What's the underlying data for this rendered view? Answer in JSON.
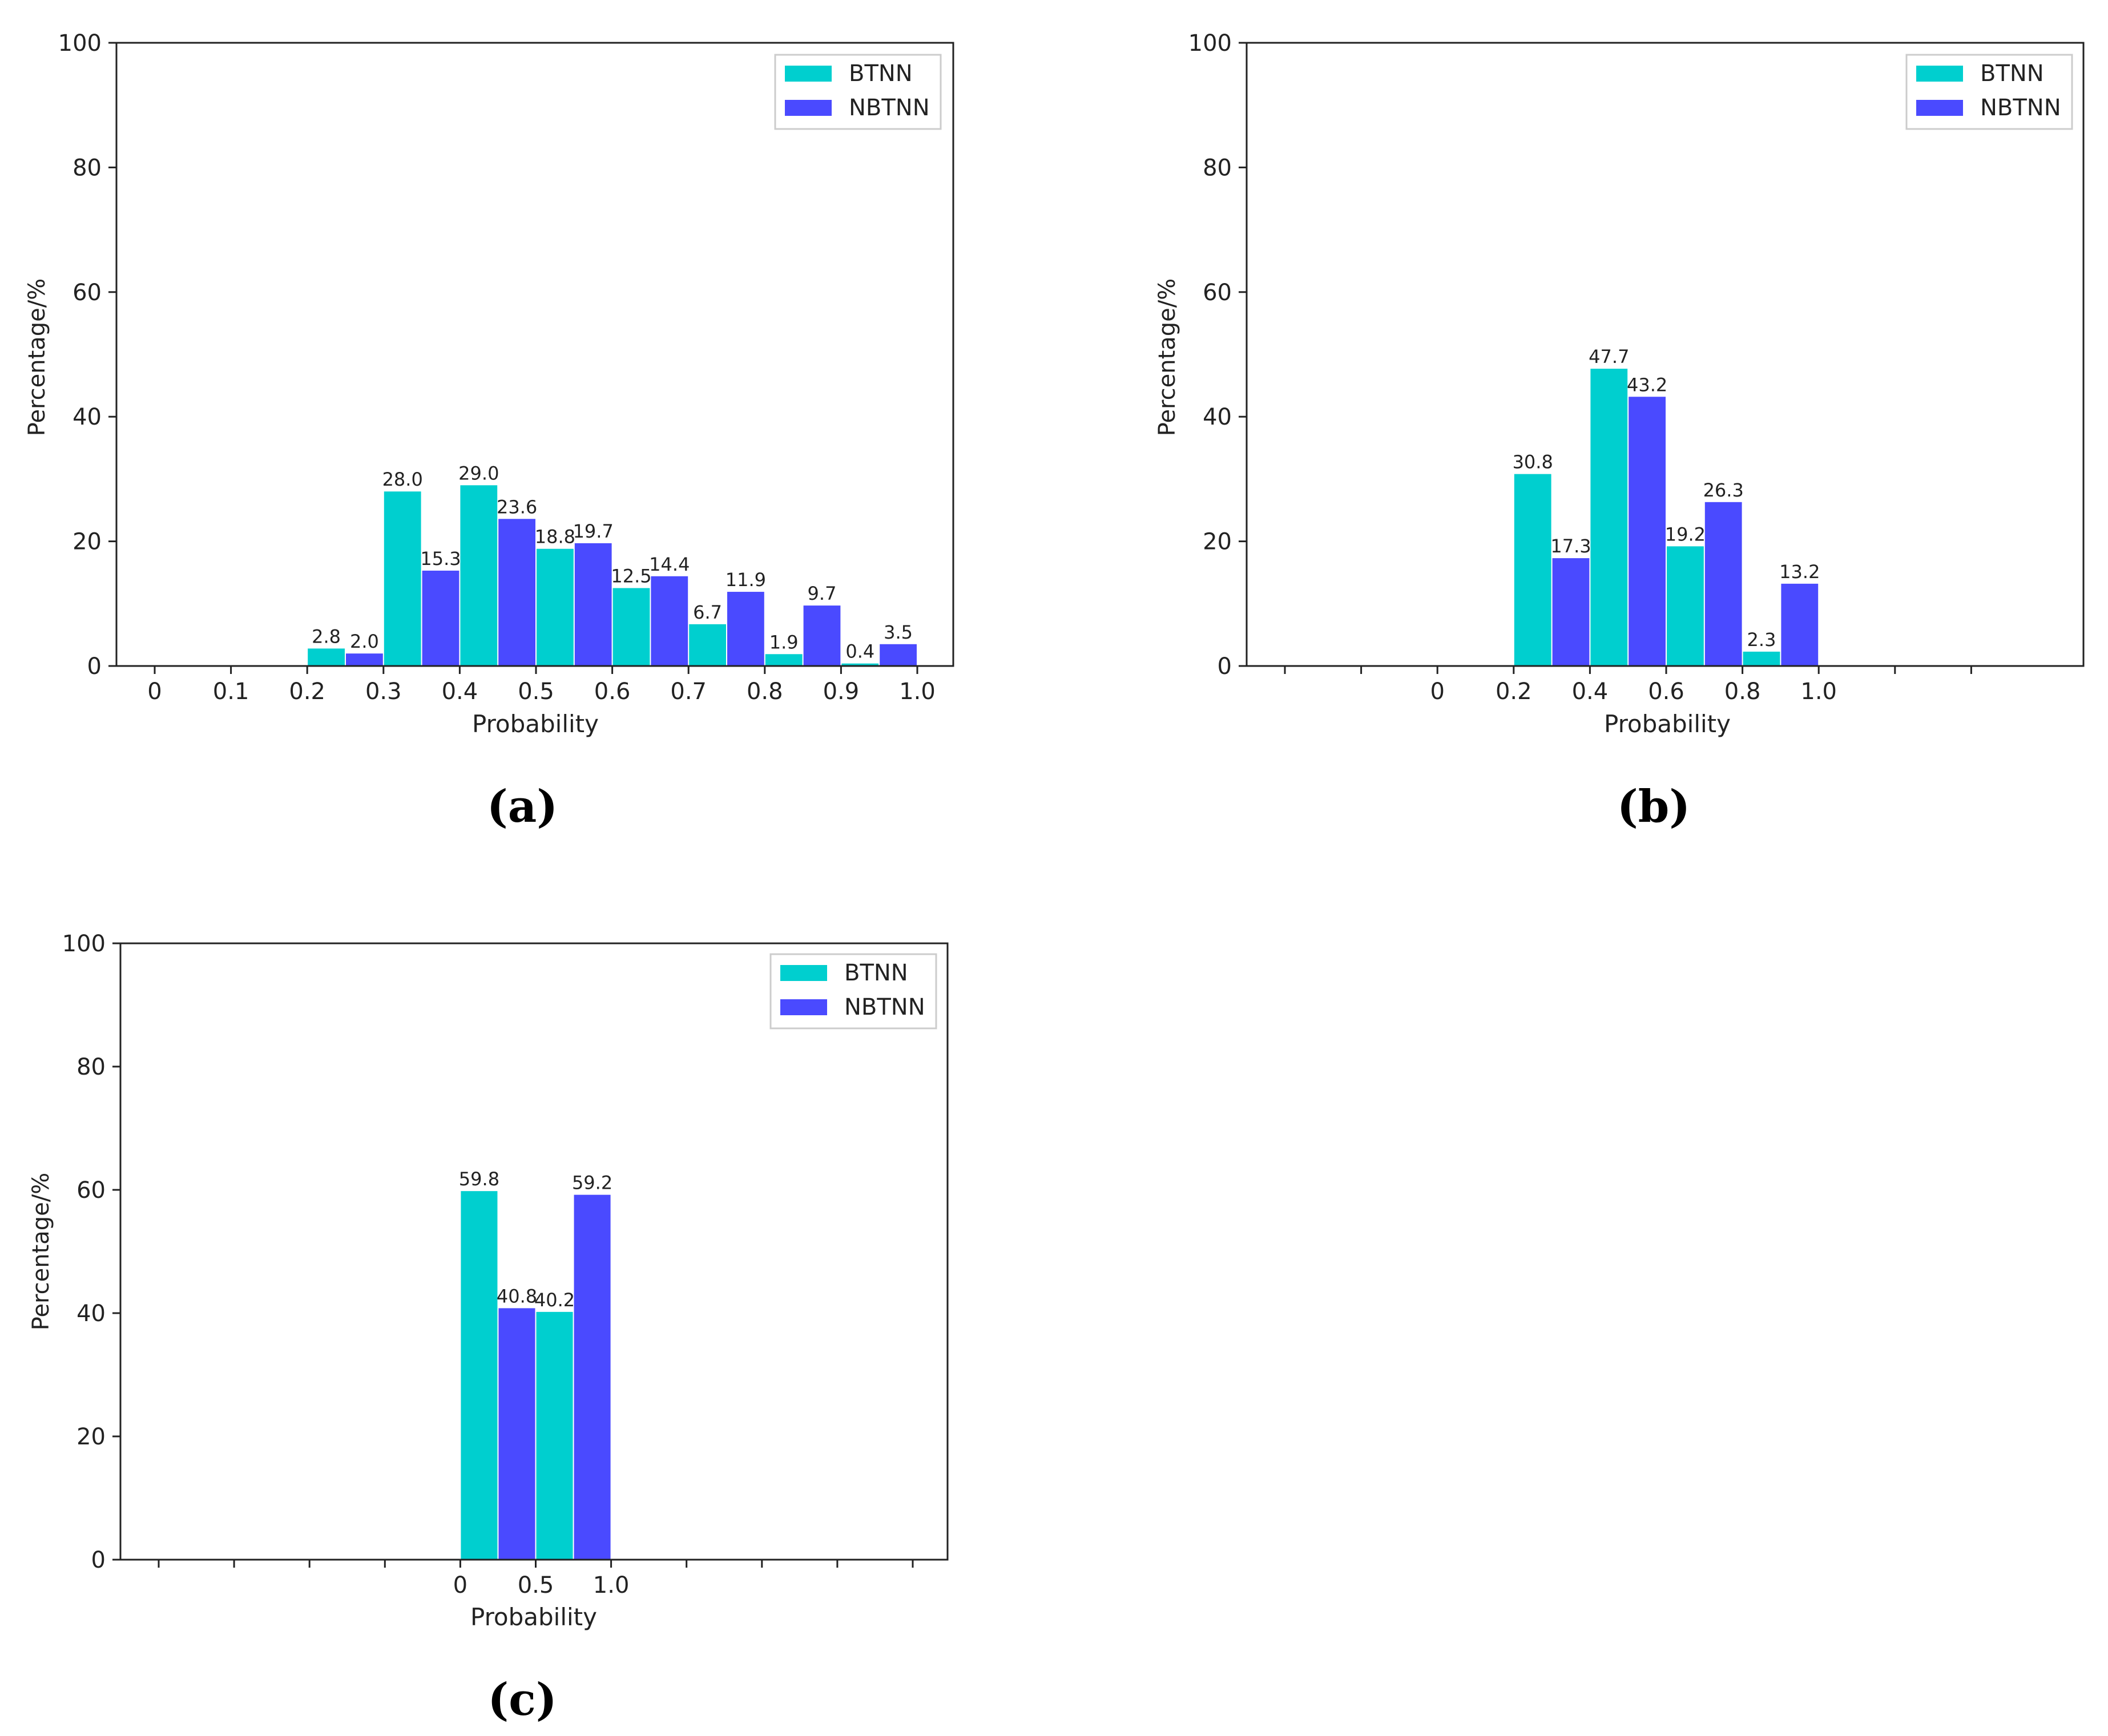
{
  "colors": {
    "btnn": "#00cfcf",
    "nbtnn": "#4a4aff",
    "frame": "#222222",
    "text": "#222222"
  },
  "chart_data": [
    {
      "type": "bar",
      "caption": "(a)",
      "ylabel": "Percentage/%",
      "xlabel": "Probability",
      "ylim": [
        0,
        100
      ],
      "yticks": [
        "0",
        "20",
        "40",
        "60",
        "80",
        "100"
      ],
      "xticks": [
        "0",
        "0.1",
        "0.2",
        "0.3",
        "0.4",
        "0.5",
        "0.6",
        "0.7",
        "0.8",
        "0.9",
        "1.0"
      ],
      "extra_ticks": 0,
      "legend_position": "top-right",
      "series": [
        {
          "name": "BTNN",
          "values": [
            2.8,
            28.0,
            29.0,
            18.8,
            12.5,
            6.7,
            1.9,
            0.4
          ],
          "labels": [
            "2.8",
            "28.0",
            "29.0",
            "18.8",
            "12.5",
            "6.7",
            "1.9",
            "0.4"
          ]
        },
        {
          "name": "NBTNN",
          "values": [
            2.0,
            15.3,
            23.6,
            19.7,
            14.4,
            11.9,
            9.7,
            3.5
          ],
          "labels": [
            "2.0",
            "15.3",
            "23.6",
            "19.7",
            "14.4",
            "11.9",
            "9.7",
            "3.5"
          ]
        }
      ],
      "group_start_tick": 2
    },
    {
      "type": "bar",
      "caption": "(b)",
      "ylabel": "Percentage/%",
      "xlabel": "Probability",
      "ylim": [
        0,
        100
      ],
      "yticks": [
        "0",
        "20",
        "40",
        "60",
        "80",
        "100"
      ],
      "xticks": [
        "0",
        "0.2",
        "0.4",
        "0.6",
        "0.8",
        "1.0"
      ],
      "extra_ticks": 2,
      "legend_position": "top-right",
      "series": [
        {
          "name": "BTNN",
          "values": [
            30.8,
            47.7,
            19.2,
            2.3
          ],
          "labels": [
            "30.8",
            "47.7",
            "19.2",
            "2.3"
          ]
        },
        {
          "name": "NBTNN",
          "values": [
            17.3,
            43.2,
            26.3,
            13.2
          ],
          "labels": [
            "17.3",
            "43.2",
            "26.3",
            "13.2"
          ]
        }
      ],
      "group_start_tick": 1
    },
    {
      "type": "bar",
      "caption": "(c)",
      "ylabel": "Percentage/%",
      "xlabel": "Probability",
      "ylim": [
        0,
        100
      ],
      "yticks": [
        "0",
        "20",
        "40",
        "60",
        "80",
        "100"
      ],
      "xticks": [
        "0",
        "0.5",
        "1.0"
      ],
      "extra_ticks": 4,
      "legend_position": "top-right",
      "series": [
        {
          "name": "BTNN",
          "values": [
            59.8,
            40.2
          ],
          "labels": [
            "59.8",
            "40.2"
          ]
        },
        {
          "name": "NBTNN",
          "values": [
            40.8,
            59.2
          ],
          "labels": [
            "40.8",
            "59.2"
          ]
        }
      ],
      "group_start_tick": 0
    }
  ]
}
